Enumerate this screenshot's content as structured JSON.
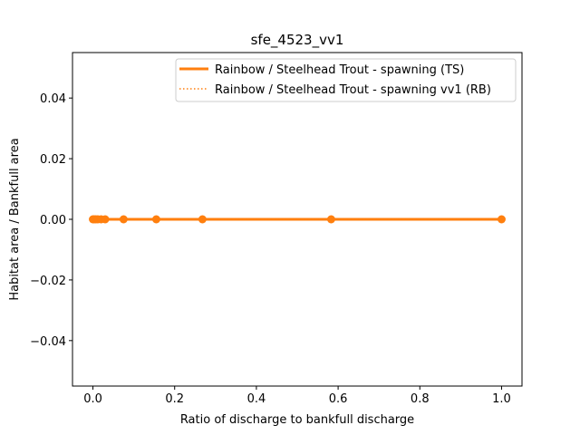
{
  "chart_data": {
    "type": "line",
    "title": "sfe_4523_vv1",
    "xlabel": "Ratio of discharge to bankfull discharge",
    "ylabel": "Habitat area / Bankfull area",
    "xlim": [
      -0.05,
      1.05
    ],
    "ylim": [
      -0.055,
      0.055
    ],
    "xticks": [
      0.0,
      0.2,
      0.4,
      0.6,
      0.8,
      1.0
    ],
    "xtick_labels": [
      "0.0",
      "0.2",
      "0.4",
      "0.6",
      "0.8",
      "1.0"
    ],
    "yticks": [
      -0.04,
      -0.02,
      0.0,
      0.02,
      0.04
    ],
    "ytick_labels": [
      "−0.04",
      "−0.02",
      "0.00",
      "0.02",
      "0.04"
    ],
    "grid": false,
    "legend_position": "top-right",
    "series": [
      {
        "name": "Rainbow / Steelhead Trout - spawning (TS)",
        "style": "solid",
        "color": "#ff7f0e",
        "markers": true,
        "x": [
          0.0,
          0.003,
          0.007,
          0.012,
          0.02,
          0.03,
          0.075,
          0.155,
          0.268,
          0.583,
          1.0
        ],
        "y": [
          0,
          0,
          0,
          0,
          0,
          0,
          0,
          0,
          0,
          0,
          0
        ]
      },
      {
        "name": "Rainbow / Steelhead Trout - spawning vv1 (RB)",
        "style": "dotted",
        "color": "#ff7f0e",
        "markers": false,
        "x": [
          0.0,
          0.003,
          0.007,
          0.012,
          0.02,
          0.03,
          0.075,
          0.155,
          0.268,
          0.583,
          1.0
        ],
        "y": [
          0,
          0,
          0,
          0,
          0,
          0,
          0,
          0,
          0,
          0,
          0
        ]
      }
    ]
  }
}
